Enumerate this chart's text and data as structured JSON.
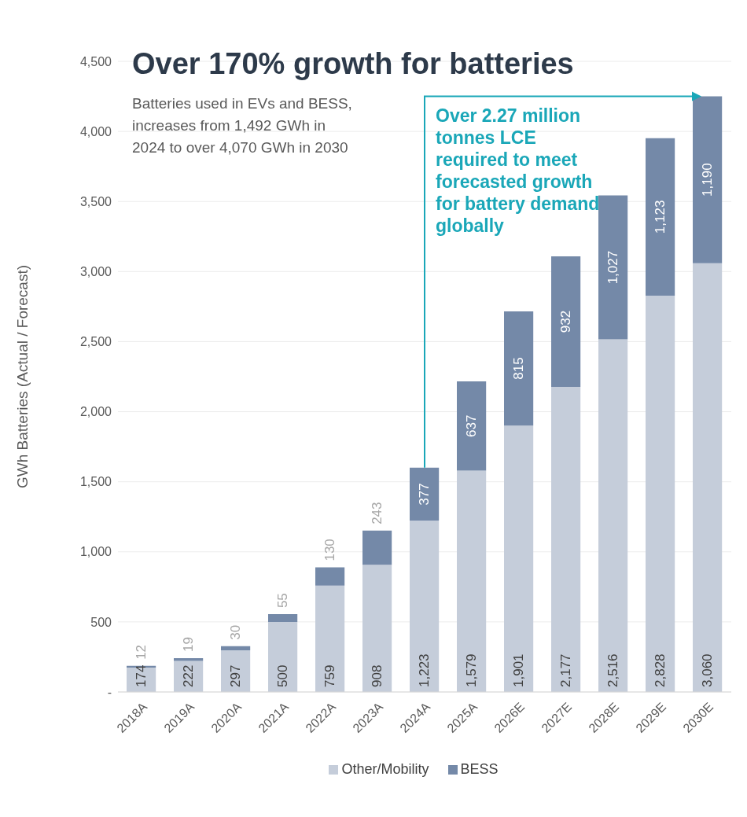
{
  "chart_data": {
    "type": "bar",
    "title": "Over 170% growth for batteries",
    "subtitle": "Batteries used in EVs and BESS, increases from 1,492 GWh in 2024 to over 4,070 GWh in 2030",
    "ylabel": "GWh Batteries (Actual / Forecast)",
    "categories": [
      "2018A",
      "2019A",
      "2020A",
      "2021A",
      "2022A",
      "2023A",
      "2024A",
      "2025A",
      "2026E",
      "2027E",
      "2028E",
      "2029E",
      "2030E"
    ],
    "series": [
      {
        "name": "Other/Mobility",
        "color": "#c5cdda",
        "values": [
          174,
          222,
          297,
          500,
          759,
          908,
          1223,
          1579,
          1901,
          2177,
          2516,
          2828,
          3060
        ],
        "value_labels": [
          "174",
          "222",
          "297",
          "500",
          "759",
          "908",
          "1,223",
          "1,579",
          "1,901",
          "2,177",
          "2,516",
          "2,828",
          "3,060"
        ]
      },
      {
        "name": "BESS",
        "color": "#7489a8",
        "values": [
          12,
          19,
          30,
          55,
          130,
          243,
          377,
          637,
          815,
          932,
          1027,
          1123,
          1190
        ],
        "value_labels": [
          "12",
          "19",
          "30",
          "55",
          "130",
          "243",
          "377",
          "637",
          "815",
          "932",
          "1,027",
          "1,123",
          "1,190"
        ]
      }
    ],
    "stacked": true,
    "ylim": [
      0,
      4500
    ],
    "yticks": [
      {
        "value": 0,
        "label": "-"
      },
      {
        "value": 500,
        "label": "500"
      },
      {
        "value": 1000,
        "label": "1,000"
      },
      {
        "value": 1500,
        "label": "1,500"
      },
      {
        "value": 2000,
        "label": "2,000"
      },
      {
        "value": 2500,
        "label": "2,500"
      },
      {
        "value": 3000,
        "label": "3,000"
      },
      {
        "value": 3500,
        "label": "3,500"
      },
      {
        "value": 4000,
        "label": "4,000"
      },
      {
        "value": 4500,
        "label": "4,500"
      }
    ],
    "grid": "y",
    "legend": "bottom",
    "annotations": [
      {
        "text": "Over 2.27 million tonnes LCE required to meet forecasted growth for battery demand globally",
        "x": "2024A",
        "y": 1600
      }
    ]
  }
}
